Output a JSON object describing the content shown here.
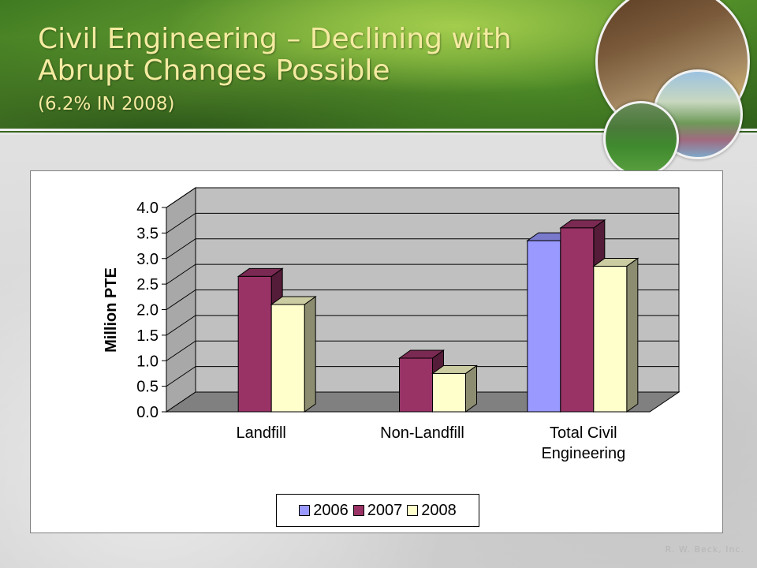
{
  "slide": {
    "title": "Civil Engineering – Declining with Abrupt Changes Possible",
    "subtitle": "(6.2% IN 2008)",
    "footer": "R. W. Beck, Inc."
  },
  "chart_data": {
    "type": "bar",
    "categories": [
      "Landfill",
      "Non-Landfill",
      "Total Civil Engineering"
    ],
    "series": [
      {
        "name": "2006",
        "values": [
          null,
          null,
          3.35
        ],
        "color": "#9999ff"
      },
      {
        "name": "2007",
        "values": [
          2.65,
          1.05,
          3.6
        ],
        "color": "#993366"
      },
      {
        "name": "2008",
        "values": [
          2.1,
          0.75,
          2.85
        ],
        "color": "#ffffcc"
      }
    ],
    "title": "",
    "xlabel": "",
    "ylabel": "Million PTE",
    "ylim": [
      0,
      4.0
    ],
    "yticks": [
      "0.0",
      "0.5",
      "1.0",
      "1.5",
      "2.0",
      "2.5",
      "3.0",
      "3.5",
      "4.0"
    ],
    "grid": true,
    "legend": "bottom",
    "wall_color": "#c0c0c0",
    "floor_color": "#808080"
  }
}
